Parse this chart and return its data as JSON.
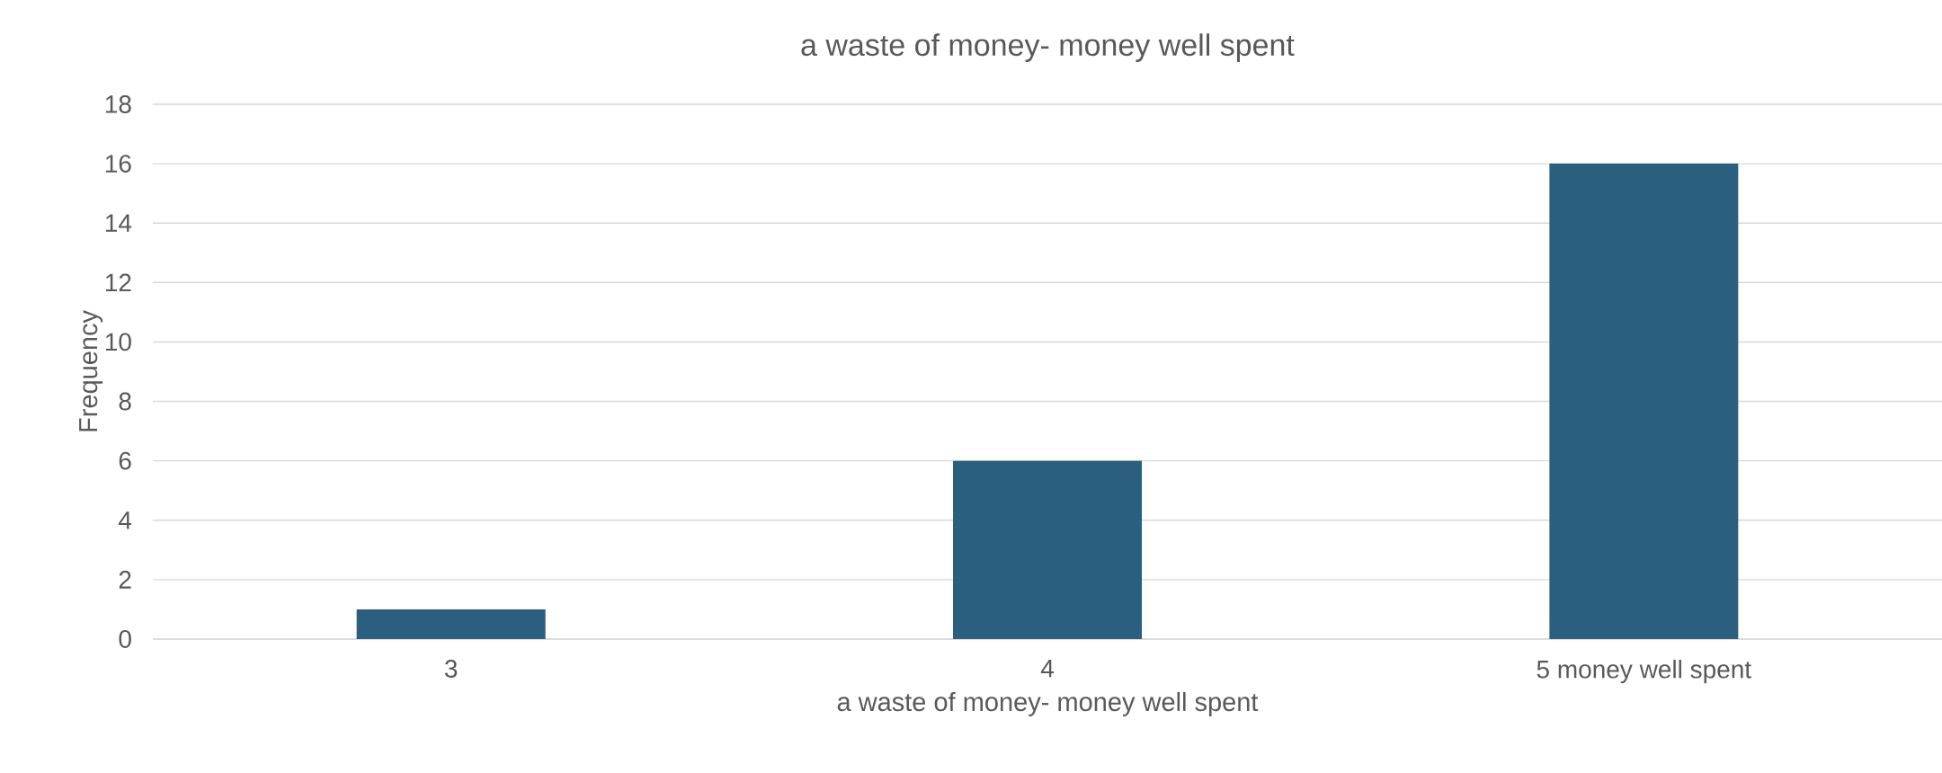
{
  "chart_data": {
    "type": "bar",
    "title": "a waste of money- money well spent",
    "xlabel": "a waste of money- money well spent",
    "ylabel": "Frequency",
    "categories": [
      "3",
      "4",
      "5 money well spent"
    ],
    "values": [
      1,
      6,
      16
    ],
    "color": "#2a5f80",
    "ylim": [
      0,
      18
    ],
    "yticks": [
      0,
      2,
      4,
      6,
      8,
      10,
      12,
      14,
      16,
      18
    ],
    "grid": "y"
  }
}
